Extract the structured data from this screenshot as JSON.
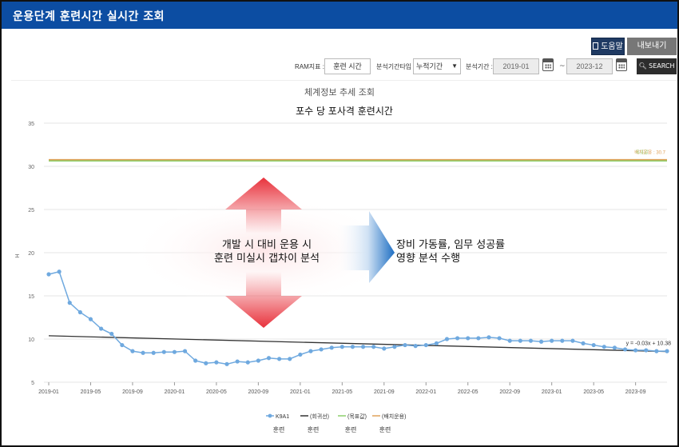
{
  "window": {
    "title": "운용단계 훈련시간 실시간 조회"
  },
  "toolbar": {
    "help_label": "도움말",
    "export_label": "내보내기"
  },
  "filters": {
    "ram_label": "RAM지표 :",
    "ram_value": "훈련 시간",
    "period_type_label": "분석기간타입 :",
    "period_type_value": "누적기간",
    "period_label": "분석기간 :",
    "start_date": "2019-01",
    "end_date": "2023-12",
    "date_separator": "~",
    "search_label": "SEARCH"
  },
  "chart_header": "체계정보 추세 조회",
  "overlay": {
    "title": "포수 당 포사격 훈련시간",
    "left_text_line1": "개발 시 대비 운용 시",
    "left_text_line2": "훈련 미실시 갭차이 분석",
    "right_text_line1": "장비 가동률, 임무 성공률",
    "right_text_line2": "영향 분석 수행"
  },
  "colors": {
    "titlebar": "#0c4da2",
    "series": "#6fa9df",
    "trend": "#333333",
    "target": "#8ccf6a",
    "deploy": "#e0a25a",
    "arrow_red": "#e8323c",
    "arrow_blue": "#1f6fc3"
  },
  "chart_data": {
    "type": "line",
    "ylabel": "H",
    "ylim": [
      5,
      35
    ],
    "yticks": [
      5,
      10,
      15,
      20,
      25,
      30,
      35
    ],
    "xticks": [
      "2019-01",
      "2019-05",
      "2019-09",
      "2020-01",
      "2020-05",
      "2020-09",
      "2021-01",
      "2021-05",
      "2021-09",
      "2022-01",
      "2022-05",
      "2022-09",
      "2023-01",
      "2023-05",
      "2023-09"
    ],
    "x": [
      "2019-01",
      "2019-02",
      "2019-03",
      "2019-04",
      "2019-05",
      "2019-06",
      "2019-07",
      "2019-08",
      "2019-09",
      "2019-10",
      "2019-11",
      "2019-12",
      "2020-01",
      "2020-02",
      "2020-03",
      "2020-04",
      "2020-05",
      "2020-06",
      "2020-07",
      "2020-08",
      "2020-09",
      "2020-10",
      "2020-11",
      "2020-12",
      "2021-01",
      "2021-02",
      "2021-03",
      "2021-04",
      "2021-05",
      "2021-06",
      "2021-07",
      "2021-08",
      "2021-09",
      "2021-10",
      "2021-11",
      "2021-12",
      "2022-01",
      "2022-02",
      "2022-03",
      "2022-04",
      "2022-05",
      "2022-06",
      "2022-07",
      "2022-08",
      "2022-09",
      "2022-10",
      "2022-11",
      "2022-12",
      "2023-01",
      "2023-02",
      "2023-03",
      "2023-04",
      "2023-05",
      "2023-06",
      "2023-07",
      "2023-08",
      "2023-09",
      "2023-10",
      "2023-11",
      "2023-12"
    ],
    "series": [
      {
        "name": "K9A1",
        "sublabel": "훈련",
        "values": [
          17.5,
          17.8,
          14.2,
          13.1,
          12.3,
          11.2,
          10.6,
          9.3,
          8.6,
          8.4,
          8.4,
          8.5,
          8.5,
          8.6,
          7.5,
          7.2,
          7.3,
          7.1,
          7.4,
          7.3,
          7.5,
          7.8,
          7.7,
          7.7,
          8.2,
          8.6,
          8.8,
          9.0,
          9.1,
          9.1,
          9.1,
          9.1,
          8.9,
          9.1,
          9.3,
          9.2,
          9.3,
          9.5,
          10.0,
          10.1,
          10.1,
          10.1,
          10.2,
          10.1,
          9.8,
          9.8,
          9.8,
          9.7,
          9.8,
          9.8,
          9.8,
          9.5,
          9.3,
          9.1,
          9.0,
          8.8,
          8.7,
          8.7,
          8.6,
          8.6
        ]
      }
    ],
    "trendline": {
      "name": "(회귀선)",
      "sublabel": "훈련",
      "start": 10.38,
      "end": 8.55,
      "equation": "y = -0.03x + 10.38"
    },
    "target": {
      "name": "(목표값)",
      "sublabel": "훈련",
      "value": 30.7,
      "label": "목표값"
    },
    "deploy": {
      "name": "(배치운용)",
      "sublabel": "훈련",
      "value": 30.7,
      "label": "배치운용 : 30.7"
    }
  }
}
